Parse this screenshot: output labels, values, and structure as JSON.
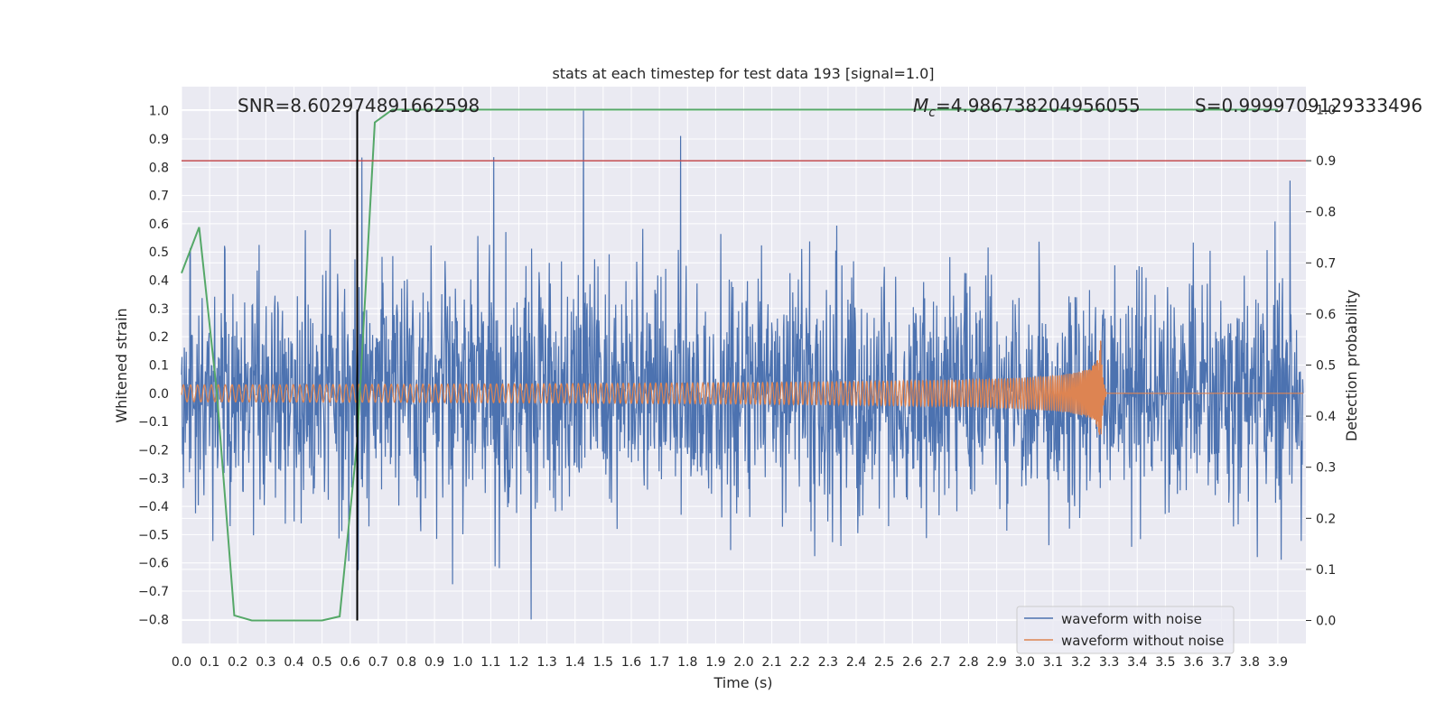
{
  "chart_data": {
    "type": "line",
    "title": "stats at each timestep for test data 193 [signal=1.0]",
    "xlabel": "Time (s)",
    "ylabel": "Whitened strain",
    "y2label": "Detection probability",
    "xlim": [
      0.0,
      4.0
    ],
    "ylim": [
      -0.885,
      1.085
    ],
    "y2lim": [
      -0.045,
      1.045
    ],
    "x_ticks": [
      "0.0",
      "0.1",
      "0.2",
      "0.3",
      "0.4",
      "0.5",
      "0.6",
      "0.7",
      "0.8",
      "0.9",
      "1.0",
      "1.1",
      "1.2",
      "1.3",
      "1.4",
      "1.5",
      "1.6",
      "1.7",
      "1.8",
      "1.9",
      "2.0",
      "2.1",
      "2.2",
      "2.3",
      "2.4",
      "2.5",
      "2.6",
      "2.7",
      "2.8",
      "2.9",
      "3.0",
      "3.1",
      "3.2",
      "3.3",
      "3.4",
      "3.5",
      "3.6",
      "3.7",
      "3.8",
      "3.9"
    ],
    "y_ticks": [
      "1.0",
      "0.9",
      "0.8",
      "0.7",
      "0.6",
      "0.5",
      "0.4",
      "0.3",
      "0.2",
      "0.1",
      "0.0",
      "−0.1",
      "−0.2",
      "−0.3",
      "−0.4",
      "−0.5",
      "−0.6",
      "−0.7",
      "−0.8"
    ],
    "y2_ticks": [
      "1.0",
      "0.9",
      "0.8",
      "0.7",
      "0.6",
      "0.5",
      "0.4",
      "0.3",
      "0.2",
      "0.1",
      "0.0"
    ],
    "annotations": {
      "snr": "SNR=8.602974891662598",
      "mc_symbol": "M",
      "mc_sub": "c",
      "mc_value": "=4.986738204956055",
      "s": "S=0.9999709129333496"
    },
    "threshold_line": {
      "axis": "y2",
      "value": 0.9,
      "color": "#c44e52"
    },
    "vline": {
      "x": 0.625,
      "color": "#000000"
    },
    "series": [
      {
        "name": "waveform with noise",
        "color": "#4c72b0",
        "axis": "y",
        "description": "whitened strain with noise, amplitude approx ±0.5, peaks to 1.0 near t=1.43 s",
        "seed": 193
      },
      {
        "name": "waveform without noise",
        "color": "#dd8452",
        "axis": "y",
        "description": "chirp signal, frequency and amplitude increasing until merger at t≈3.27 s",
        "merger_t": 3.27
      },
      {
        "name": "detection probability",
        "color": "#55a868",
        "axis": "y2",
        "x": [
          0.0,
          0.0625,
          0.125,
          0.1875,
          0.25,
          0.3125,
          0.375,
          0.4375,
          0.5,
          0.5625,
          0.625,
          0.6875,
          0.75,
          0.8125,
          1.0,
          1.5,
          2.0,
          2.5,
          3.0,
          3.5,
          3.9
        ],
        "values": [
          0.68,
          0.77,
          0.45,
          0.01,
          0.0,
          0.0,
          0.0,
          0.0,
          0.0,
          0.008,
          0.35,
          0.975,
          1.0,
          1.0,
          1.0,
          1.0,
          1.0,
          1.0,
          1.0,
          1.0,
          1.0
        ]
      }
    ],
    "legend": {
      "placement": "lower-right",
      "entries": [
        "waveform with noise",
        "waveform without noise"
      ]
    }
  }
}
